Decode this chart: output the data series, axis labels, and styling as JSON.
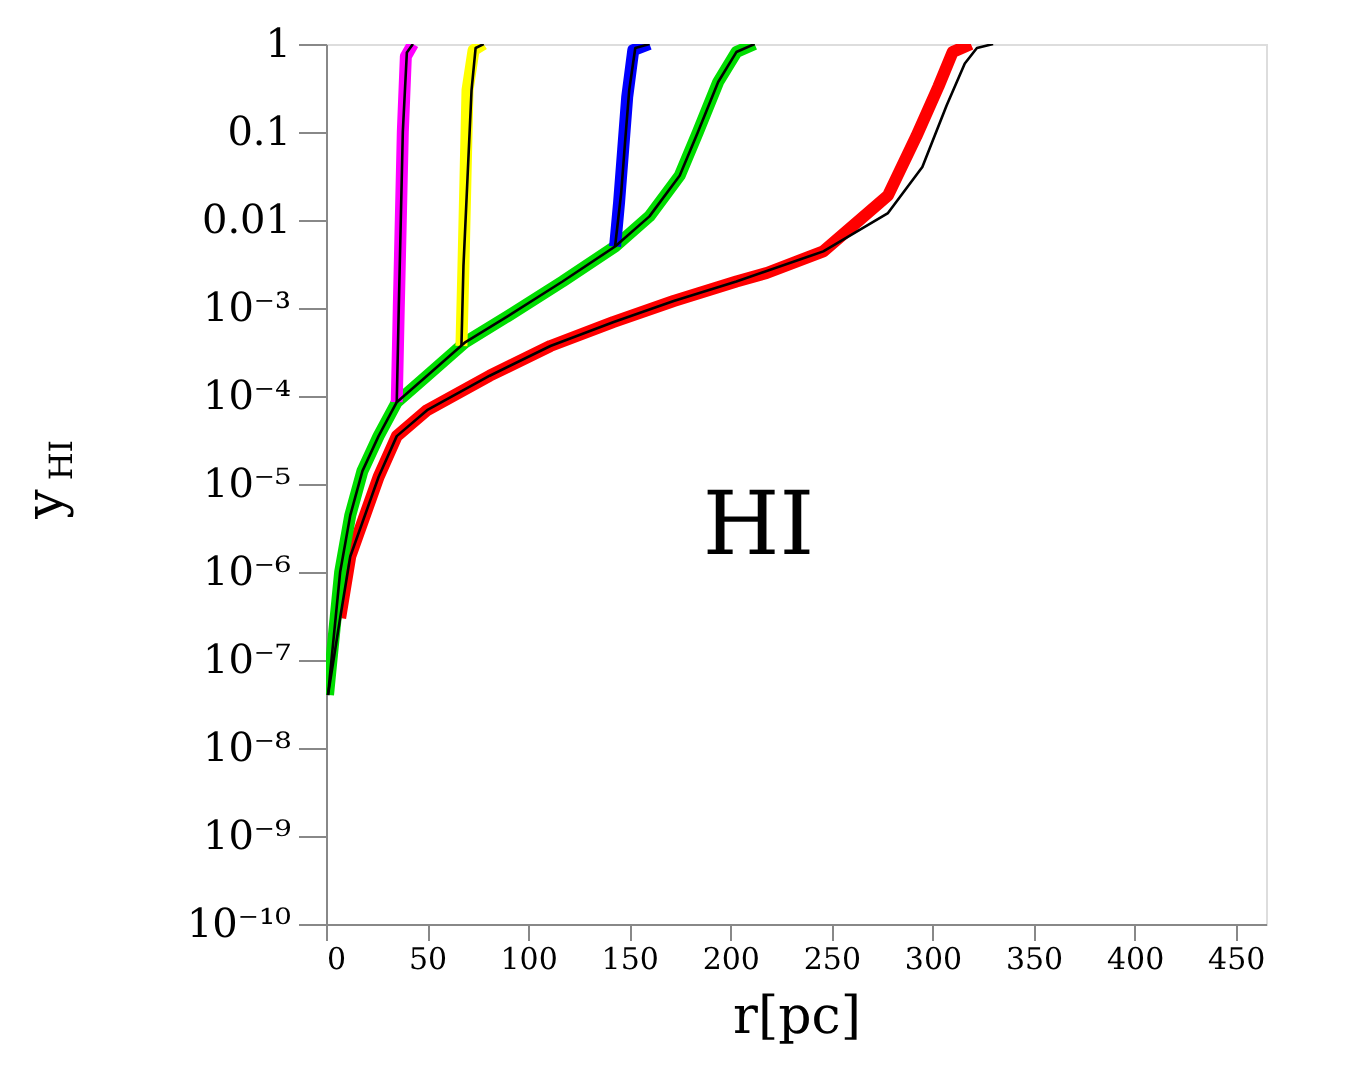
{
  "chart_data": {
    "type": "line",
    "xlabel": "r[pc]",
    "ylabel": "y$_{HI}$",
    "log": "y",
    "xlim": [
      0,
      465
    ],
    "xticks": [
      0,
      50,
      100,
      150,
      200,
      250,
      300,
      350,
      400,
      450
    ],
    "ylim": [
      1e-10,
      1
    ],
    "yticks": [
      {
        "value": 1e-10,
        "label": "10⁻¹⁰"
      },
      {
        "value": 1e-09,
        "label": "10⁻⁹"
      },
      {
        "value": 1e-08,
        "label": "10⁻⁸"
      },
      {
        "value": 1e-07,
        "label": "10⁻⁷"
      },
      {
        "value": 1e-06,
        "label": "10⁻⁶"
      },
      {
        "value": 1e-05,
        "label": "10⁻⁵"
      },
      {
        "value": 0.0001,
        "label": "10⁻⁴"
      },
      {
        "value": 0.001,
        "label": "10⁻³"
      },
      {
        "value": 0.01,
        "label": "0.01"
      },
      {
        "value": 0.1,
        "label": "0.1"
      },
      {
        "value": 1,
        "label": "1"
      }
    ],
    "annotations": [
      "HI"
    ],
    "series": [
      {
        "color": "#ff0000",
        "x": [
          7,
          12,
          26,
          35,
          50,
          81,
          111,
          142,
          172,
          203,
          218,
          246,
          278,
          292,
          303,
          310,
          319
        ],
        "values": [
          3e-07,
          1.5e-06,
          1.2e-05,
          3.5e-05,
          6.9e-05,
          0.00017,
          0.00037,
          0.00069,
          0.0012,
          0.002,
          0.0025,
          0.0044,
          0.019,
          0.089,
          0.33,
          0.81,
          1
        ]
      },
      {
        "color": "#00dd00",
        "x": [
          1,
          7,
          12,
          18,
          26,
          35,
          50,
          69,
          90,
          117,
          143,
          160,
          175,
          184,
          194,
          203,
          212
        ],
        "values": [
          4e-08,
          1e-06,
          4.4e-06,
          1.4e-05,
          3.5e-05,
          8.5e-05,
          0.00017,
          0.00041,
          0.00081,
          0.002,
          0.005,
          0.011,
          0.032,
          0.1,
          0.37,
          0.81,
          1
        ]
      },
      {
        "color": "#0000ff",
        "x": [
          143,
          145,
          147,
          149,
          152,
          160
        ],
        "values": [
          0.005,
          0.016,
          0.063,
          0.25,
          0.85,
          1
        ]
      },
      {
        "color": "#ffff00",
        "x": [
          67,
          68,
          69,
          70,
          73,
          78
        ],
        "values": [
          0.00037,
          0.003,
          0.03,
          0.3,
          0.85,
          1
        ]
      },
      {
        "color": "#ff00ff",
        "x": [
          35,
          36,
          37,
          38,
          39.5,
          43
        ],
        "values": [
          8.5e-05,
          0.001,
          0.01,
          0.1,
          0.72,
          1
        ]
      },
      {
        "color": "#000000",
        "x": [
          1,
          7,
          12,
          26,
          35,
          50,
          81,
          111,
          142,
          172,
          203,
          246,
          278,
          295,
          307,
          316,
          322,
          330
        ],
        "values": [
          4e-08,
          3e-07,
          1.5e-06,
          1.2e-05,
          3.5e-05,
          6.9e-05,
          0.00017,
          0.00037,
          0.00069,
          0.0012,
          0.002,
          0.0044,
          0.012,
          0.04,
          0.2,
          0.6,
          0.9,
          1
        ]
      },
      {
        "color": "#000000",
        "x": [
          1,
          7,
          12,
          18,
          26,
          35,
          50,
          69,
          90,
          117,
          143,
          160,
          175,
          184,
          194,
          203,
          212
        ],
        "values": [
          4e-08,
          1e-06,
          4.4e-06,
          1.4e-05,
          3.5e-05,
          8.5e-05,
          0.00017,
          0.00041,
          0.00081,
          0.002,
          0.005,
          0.011,
          0.032,
          0.1,
          0.37,
          0.81,
          1
        ]
      },
      {
        "color": "#000000",
        "x": [
          143,
          146,
          148,
          150,
          153,
          160
        ],
        "values": [
          0.005,
          0.02,
          0.08,
          0.3,
          0.9,
          1
        ]
      },
      {
        "color": "#000000",
        "x": [
          67,
          68,
          70,
          72,
          74,
          78
        ],
        "values": [
          0.00037,
          0.003,
          0.03,
          0.3,
          0.9,
          1
        ]
      },
      {
        "color": "#000000",
        "x": [
          35,
          36,
          37,
          38,
          40,
          43
        ],
        "values": [
          8.5e-05,
          0.001,
          0.01,
          0.1,
          0.8,
          1
        ]
      }
    ]
  }
}
